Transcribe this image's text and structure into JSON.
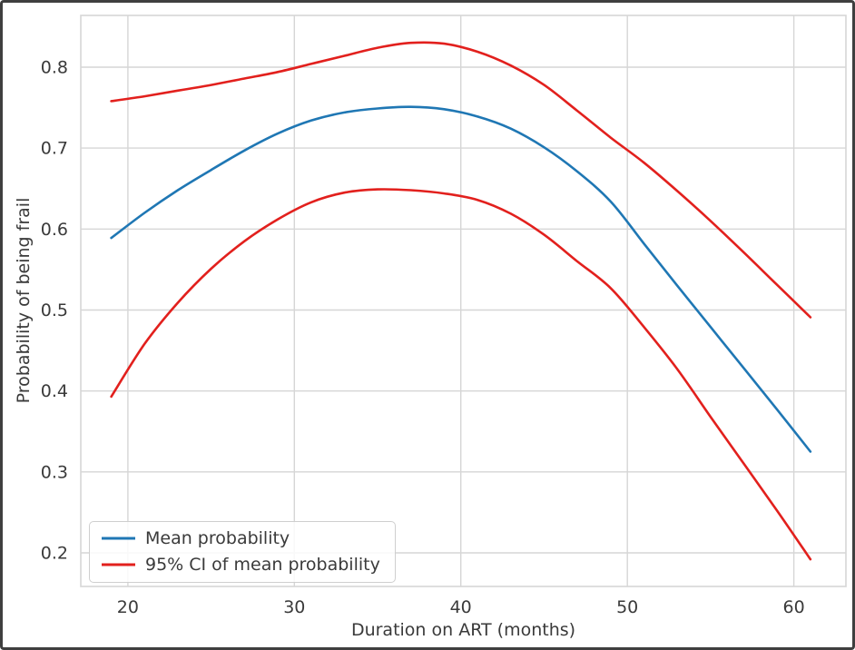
{
  "figure": {
    "background": "#ffffff",
    "border_color": "#3f3f3f"
  },
  "chart_data": {
    "type": "line",
    "title": "",
    "xlabel": "Duration on ART (months)",
    "ylabel": "Probability of being frail",
    "x_ticks": [
      20,
      30,
      40,
      50,
      60
    ],
    "y_ticks": [
      0.2,
      0.3,
      0.4,
      0.5,
      0.6,
      0.7,
      0.8
    ],
    "xlim": [
      17.17,
      63.13
    ],
    "ylim": [
      0.1585,
      0.8639
    ],
    "grid": true,
    "grid_color": "#d6d6d6",
    "spine_color": "#d6d6d6",
    "text_color": "#3a3a3a",
    "x": [
      19,
      21,
      23,
      25,
      27,
      29,
      31,
      33,
      35,
      37,
      39,
      41,
      43,
      45,
      47,
      49,
      51,
      53,
      55,
      57,
      59,
      61
    ],
    "series": [
      {
        "name": "Mean probability",
        "color": "#1f77b4",
        "role": "mean",
        "values": [
          0.589,
          0.62,
          0.648,
          0.673,
          0.697,
          0.718,
          0.734,
          0.744,
          0.749,
          0.751,
          0.748,
          0.739,
          0.724,
          0.701,
          0.671,
          0.634,
          0.582,
          0.53,
          0.479,
          0.428,
          0.377,
          0.325
        ]
      },
      {
        "name": "95% CI of mean probability (upper)",
        "color": "#e2201d",
        "role": "ci-upper",
        "values": [
          0.758,
          0.764,
          0.771,
          0.778,
          0.786,
          0.794,
          0.804,
          0.814,
          0.824,
          0.83,
          0.829,
          0.819,
          0.802,
          0.778,
          0.746,
          0.713,
          0.682,
          0.647,
          0.61,
          0.571,
          0.531,
          0.491
        ]
      },
      {
        "name": "95% CI of mean probability (lower)",
        "color": "#e2201d",
        "role": "ci-lower",
        "values": [
          0.393,
          0.458,
          0.509,
          0.551,
          0.585,
          0.612,
          0.633,
          0.645,
          0.649,
          0.648,
          0.644,
          0.636,
          0.619,
          0.593,
          0.56,
          0.527,
          0.479,
          0.427,
          0.368,
          0.31,
          0.252,
          0.192
        ]
      }
    ],
    "legend": {
      "position": "lower left",
      "items": [
        {
          "label": "Mean probability",
          "color": "#1f77b4"
        },
        {
          "label": "95% CI of mean probability",
          "color": "#e2201d"
        }
      ]
    }
  }
}
